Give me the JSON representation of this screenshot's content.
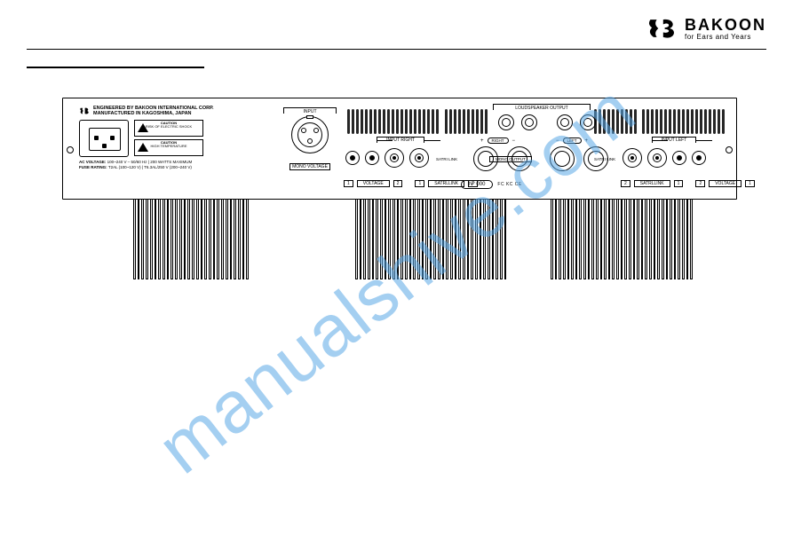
{
  "brand": {
    "name": "BAKOON",
    "tagline": "for Ears and Years"
  },
  "watermark": "manualshive.com",
  "corp": {
    "line1": "ENGINEERED BY BAKOON INTERNATIONAL CORP.",
    "line2": "MANUFACTURED IN KAGOSHIMA, JAPAN"
  },
  "caution": {
    "title": "CAUTION",
    "shock": "RISK OF ELECTRIC SHOCK",
    "temp": "HIGH TEMPERATURE"
  },
  "rating": {
    "ac_label": "AC VOLTAGE:",
    "ac_value": "100~240 V – 50/60 Hz | 200 WATTS MAXIMUM",
    "fuse_label": "FUSE RATING:",
    "fuse_value": "T2AL (100~120 V) | T6.3AL/250 V (200~240 V)"
  },
  "labels": {
    "input": "INPUT",
    "mono_voltage": "MONO VOLTAGE",
    "loudspeaker": "LOUDSPEAKER OUTPUT",
    "input_right": "INPUT RIGHT",
    "input_left": "INPUT LEFT",
    "right": "RIGHT",
    "left": "LEFT",
    "satri_link": "SATRI LINK",
    "mono_output": "MONO OUTPUT",
    "voltage": "VOLTAGE",
    "satrllink": "SATRLLINK",
    "num1": "1",
    "num2": "2",
    "plus": "+",
    "minus": "−"
  },
  "serial": {
    "prefix": "N°",
    "value": "000"
  },
  "certs": "FC  KC  CE",
  "colors": {
    "line": "#000000",
    "bg": "#ffffff",
    "watermark": "#5aa8e6"
  }
}
